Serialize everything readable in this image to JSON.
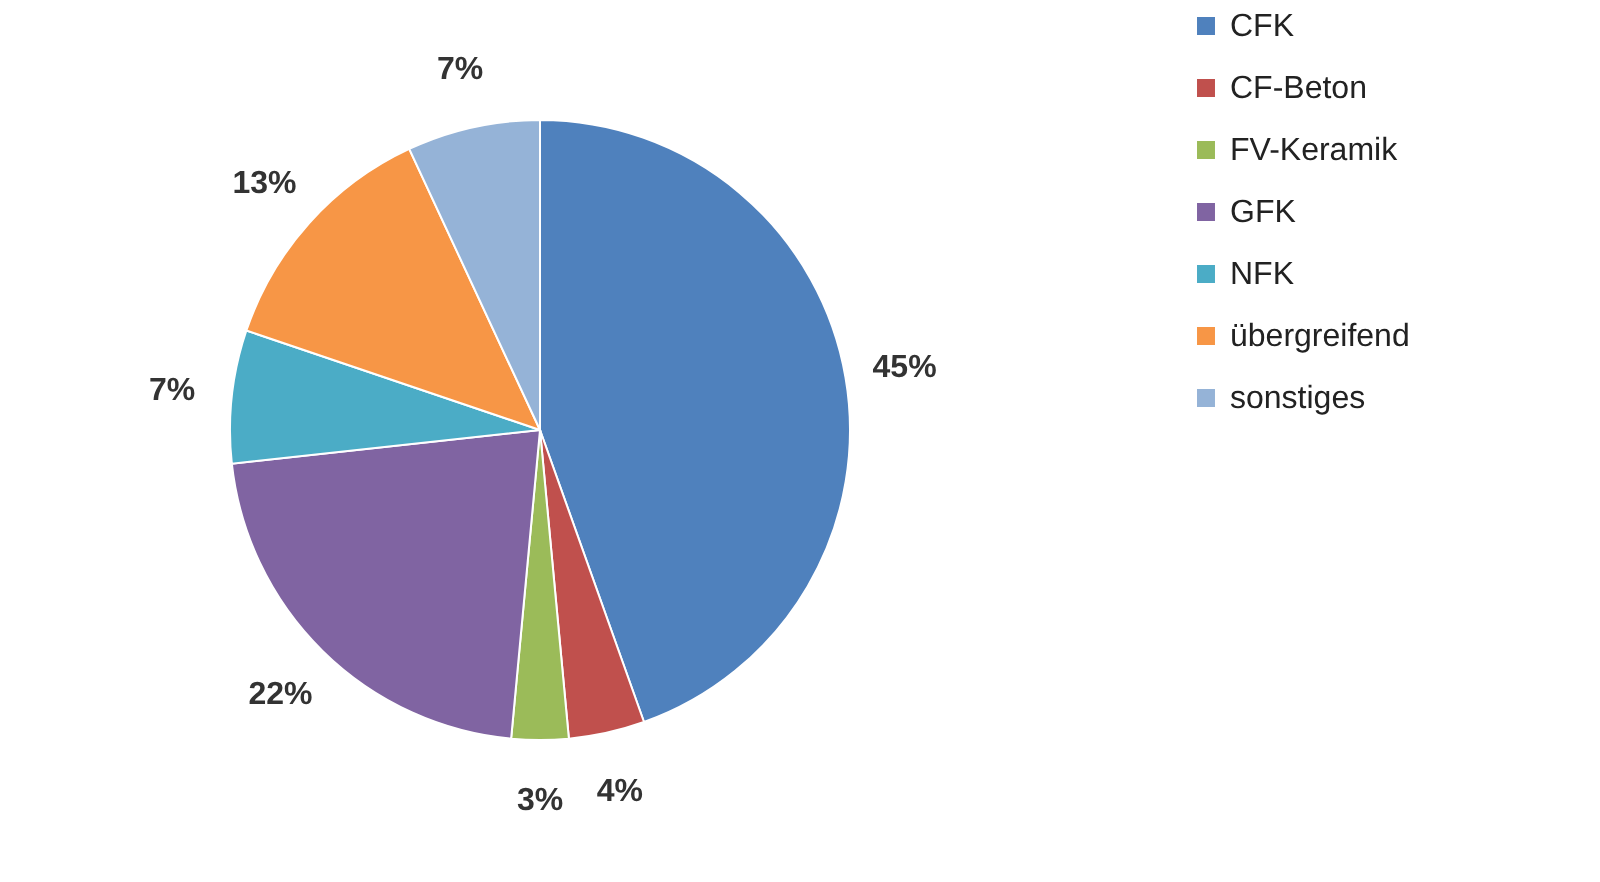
{
  "chart_data": {
    "type": "pie",
    "categories": [
      "CFK",
      "CF-Beton",
      "FV-Keramik",
      "GFK",
      "NFK",
      "übergreifend",
      "sonstiges"
    ],
    "values": [
      45,
      4,
      3,
      22,
      7,
      13,
      7
    ],
    "value_labels": [
      "45%",
      "4%",
      "3%",
      "22%",
      "7%",
      "13%",
      "7%"
    ],
    "colors": [
      "#4f81bd",
      "#c0504d",
      "#9bbb59",
      "#8064a2",
      "#4bacc6",
      "#f79646",
      "#95b3d7"
    ],
    "legend": "right"
  }
}
